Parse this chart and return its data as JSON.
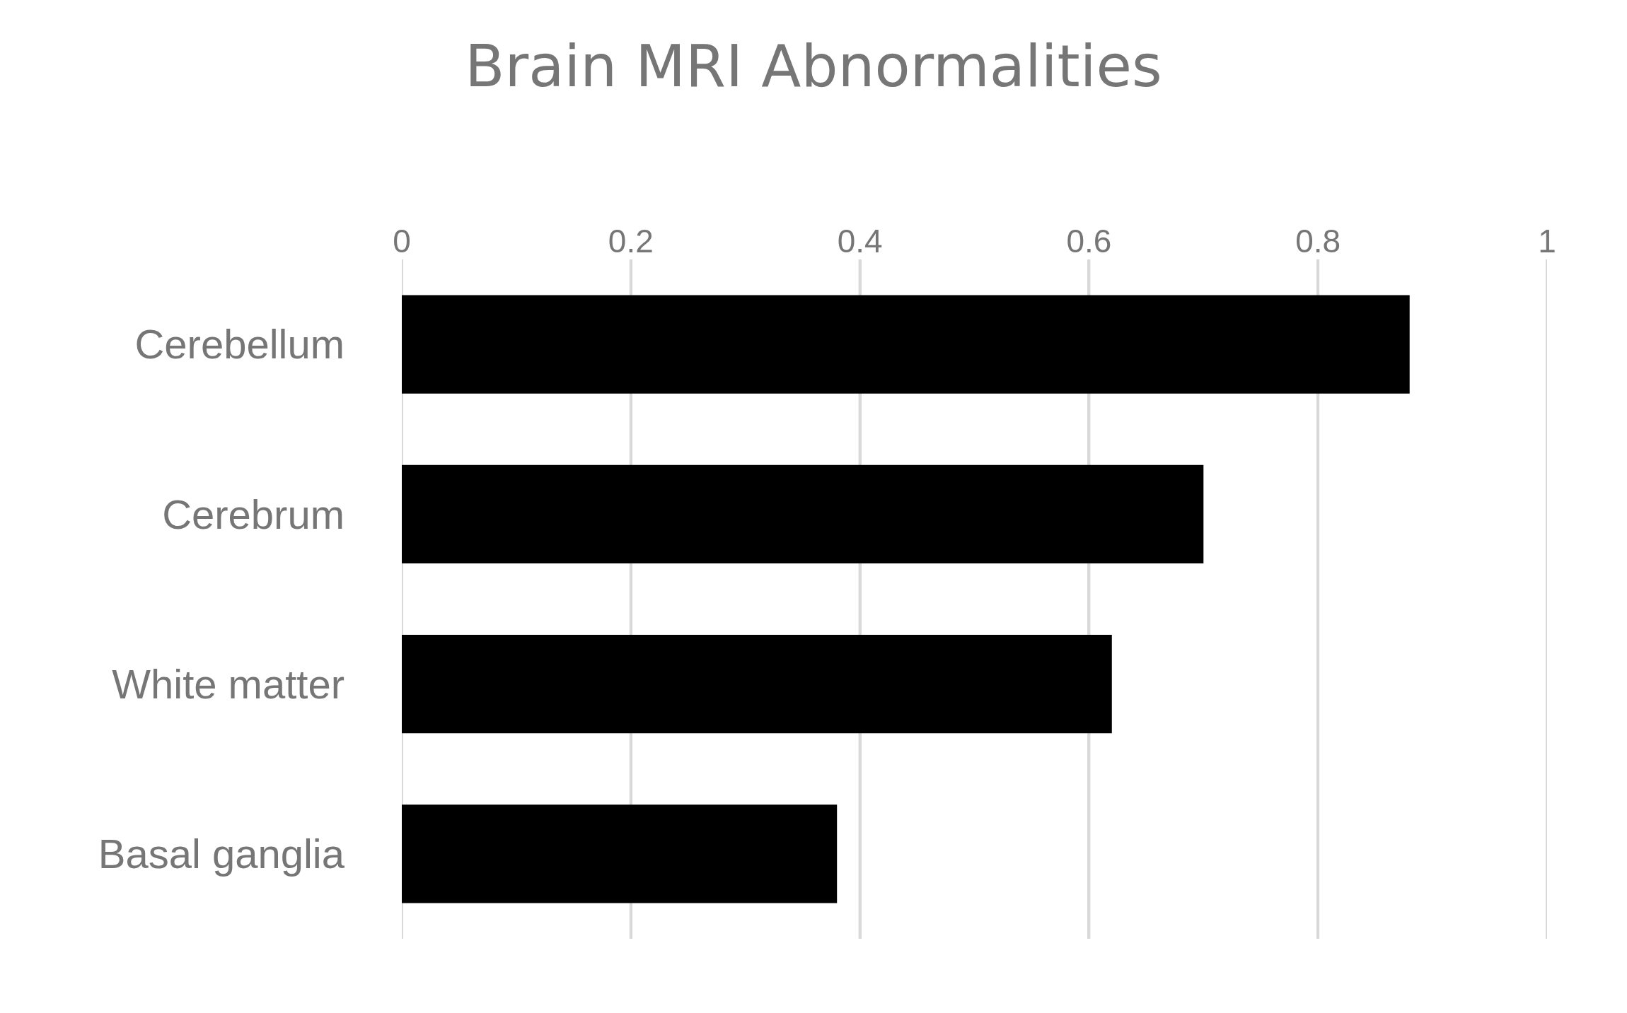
{
  "chart_data": {
    "type": "bar",
    "orientation": "horizontal",
    "title": "Brain MRI Abnormalities",
    "categories": [
      "Cerebellum",
      "Cerebrum",
      "White matter",
      "Basal ganglia"
    ],
    "values": [
      0.88,
      0.7,
      0.62,
      0.38
    ],
    "color": "#000000",
    "xlim": [
      0,
      1
    ],
    "xticks": [
      0,
      0.2,
      0.4,
      0.6,
      0.8,
      1
    ],
    "grid": "x"
  }
}
